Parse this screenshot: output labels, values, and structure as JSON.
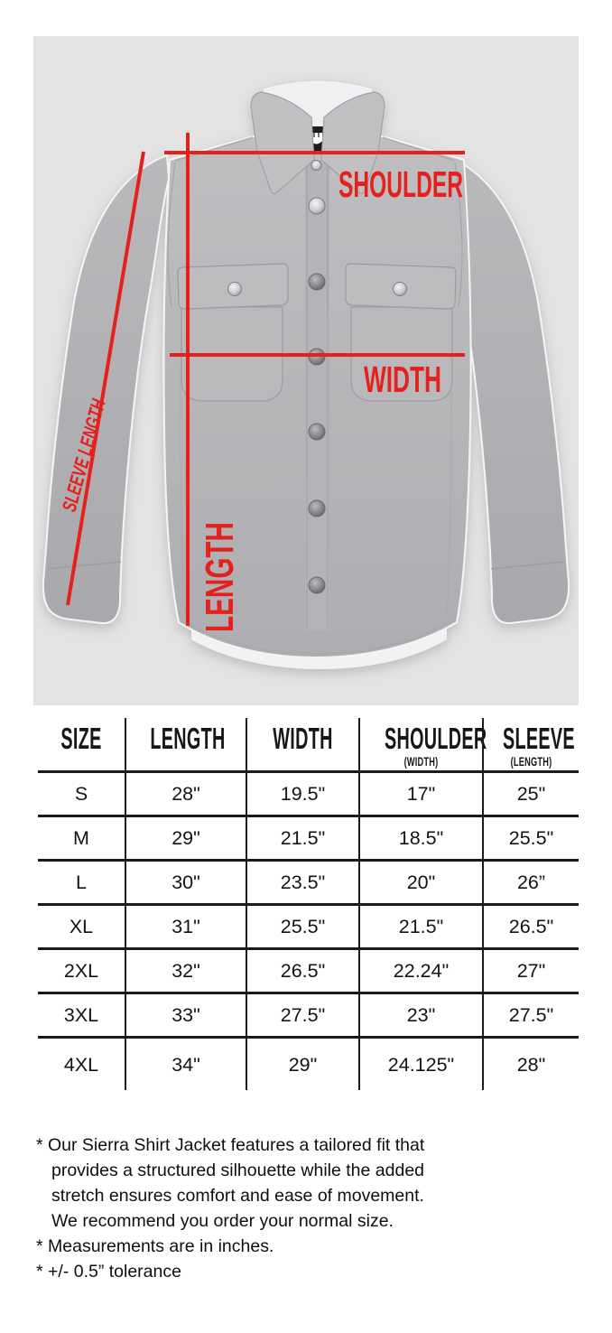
{
  "photo": {
    "bg": "#e3e3e3",
    "accent_red": "#e4211c",
    "labels": {
      "shoulder": "SHOULDER",
      "width": "WIDTH",
      "length": "LENGTH",
      "sleeve_length": "SLEEVE LENGTH"
    }
  },
  "size_chart": {
    "columns": [
      {
        "label": "SIZE",
        "sub": ""
      },
      {
        "label": "LENGTH",
        "sub": ""
      },
      {
        "label": "WIDTH",
        "sub": ""
      },
      {
        "label": "SHOULDER",
        "sub": "(WIDTH)"
      },
      {
        "label": "SLEEVE",
        "sub": "(LENGTH)"
      }
    ],
    "rows": [
      {
        "size": "S",
        "values": [
          "28\"",
          "19.5\"",
          "17\"",
          "25\""
        ]
      },
      {
        "size": "M",
        "values": [
          "29\"",
          "21.5\"",
          "18.5\"",
          "25.5\""
        ]
      },
      {
        "size": "L",
        "values": [
          "30\"",
          "23.5\"",
          "20\"",
          "26”"
        ]
      },
      {
        "size": "XL",
        "values": [
          "31\"",
          "25.5\"",
          "21.5\"",
          "26.5\""
        ]
      },
      {
        "size": "2XL",
        "values": [
          "32\"",
          "26.5\"",
          "22.24\"",
          "27\""
        ]
      },
      {
        "size": "3XL",
        "values": [
          "33\"",
          "27.5\"",
          "23\"",
          "27.5\""
        ]
      },
      {
        "size": "4XL",
        "values": [
          "34\"",
          "29\"",
          "24.125\"",
          "28\""
        ]
      }
    ]
  },
  "footnotes": {
    "bullet": "*",
    "items": [
      {
        "lines": [
          "Our Sierra Shirt Jacket features a tailored fit that",
          "provides a structured silhouette while the added",
          "stretch ensures comfort and ease of movement.",
          "We recommend you order your normal size."
        ]
      },
      {
        "lines": [
          "Measurements are in inches."
        ]
      },
      {
        "lines": [
          "+/- 0.5” tolerance"
        ]
      }
    ]
  }
}
